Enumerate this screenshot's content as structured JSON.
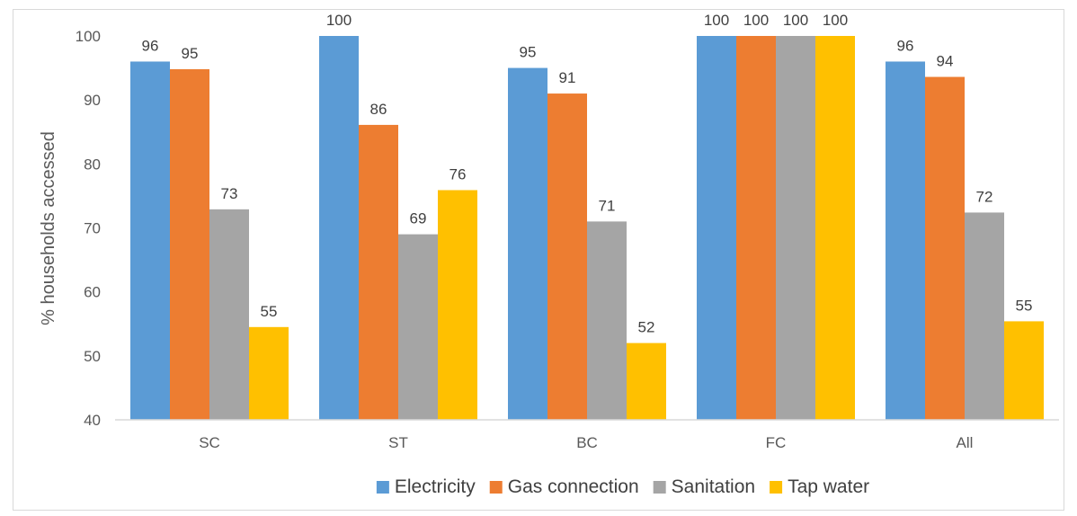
{
  "chart_data": {
    "type": "bar",
    "title": "",
    "xlabel": "",
    "ylabel": "% households accessed",
    "ylim": [
      40,
      100
    ],
    "yticks": [
      40,
      50,
      60,
      70,
      80,
      90,
      100
    ],
    "categories": [
      "SC",
      "ST",
      "BC",
      "FC",
      "All"
    ],
    "series": [
      {
        "name": "Electricity",
        "color": "#5b9bd5",
        "values": [
          96,
          100,
          95,
          100,
          96
        ],
        "labels": [
          "96",
          "100",
          "95",
          "100",
          "96"
        ]
      },
      {
        "name": "Gas connection",
        "color": "#ed7d31",
        "values": [
          94.8,
          86.1,
          91,
          100,
          93.6
        ],
        "labels": [
          "95",
          "86",
          "91",
          "100",
          "94"
        ]
      },
      {
        "name": "Sanitation",
        "color": "#a5a5a5",
        "values": [
          72.9,
          69,
          71,
          100,
          72.4
        ],
        "labels": [
          "73",
          "69",
          "71",
          "100",
          "72"
        ]
      },
      {
        "name": "Tap water",
        "color": "#ffc000",
        "values": [
          54.5,
          75.9,
          52,
          100,
          55.4
        ],
        "labels": [
          "55",
          "76",
          "52",
          "100",
          "55"
        ]
      }
    ],
    "legend_position": "bottom",
    "grid": false
  }
}
